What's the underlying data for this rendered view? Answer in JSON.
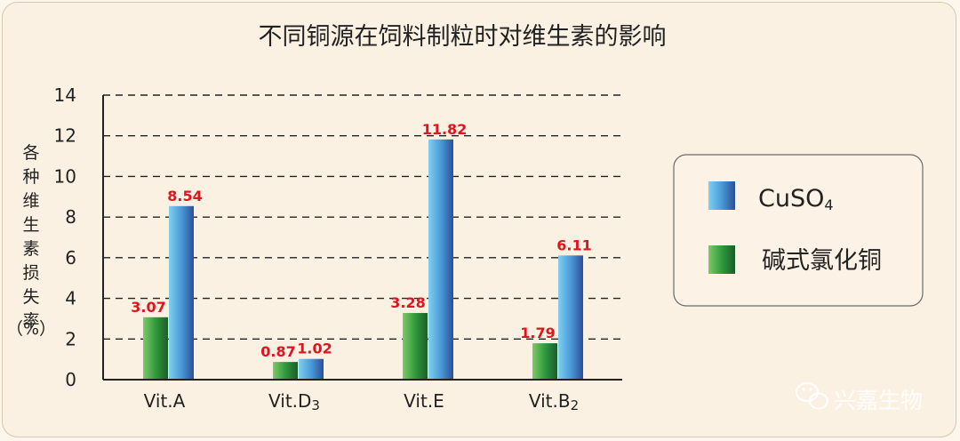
{
  "chart_data": {
    "type": "bar",
    "title": "不同铜源在饲料制粒时对维生素的影响",
    "ylabel_chars": [
      "各",
      "种",
      "维",
      "生",
      "素",
      "损",
      "失",
      "率"
    ],
    "ylabel_unit": "（%）",
    "ylim": [
      0,
      14
    ],
    "yticks": [
      0,
      2,
      4,
      6,
      8,
      10,
      12,
      14
    ],
    "grid": "dashed horizontal",
    "legend_position": "right",
    "categories": [
      {
        "main": "Vit.A",
        "sub": ""
      },
      {
        "main": "Vit.D",
        "sub": "3"
      },
      {
        "main": "Vit.E",
        "sub": ""
      },
      {
        "main": "Vit.B",
        "sub": "2"
      }
    ],
    "series": [
      {
        "name": "碱式氯化铜",
        "color": "#2e8b3a",
        "values": [
          3.07,
          0.87,
          3.28,
          1.79
        ],
        "labels": [
          "3.07",
          "0.87",
          "3.28",
          "1.79"
        ]
      },
      {
        "name_main": "CuSO",
        "name_sub": "4",
        "color": "#4a90d0",
        "values": [
          8.54,
          1.02,
          11.82,
          6.11
        ],
        "labels": [
          "8.54",
          "1.02",
          "11.82",
          "6.11"
        ]
      }
    ]
  },
  "watermark": "兴嘉生物"
}
